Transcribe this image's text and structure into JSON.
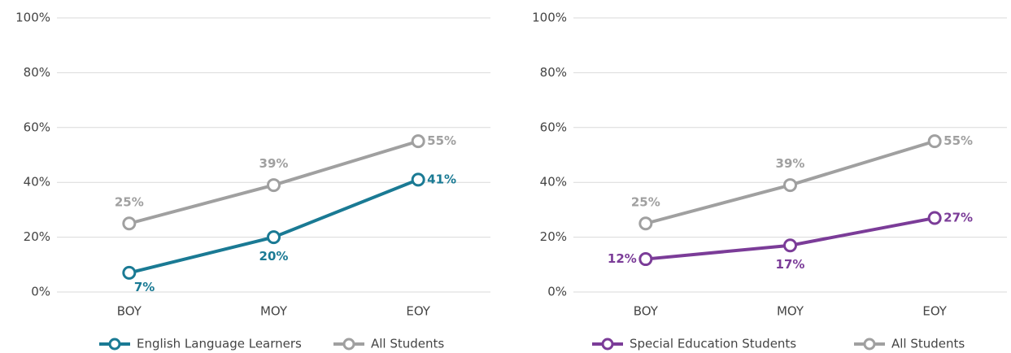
{
  "chart_data": [
    {
      "type": "line",
      "categories": [
        "BOY",
        "MOY",
        "EOY"
      ],
      "series": [
        {
          "name": "English Language Learners",
          "color": "#1a7a94",
          "values": [
            7,
            20,
            41
          ],
          "value_labels": [
            "7%",
            "20%",
            "41%"
          ]
        },
        {
          "name": "All Students",
          "color": "#a0a0a0",
          "values": [
            25,
            39,
            55
          ],
          "value_labels": [
            "25%",
            "39%",
            "55%"
          ]
        }
      ],
      "ylim": [
        0,
        100
      ],
      "yticks": [
        {
          "value": 0,
          "label": "0%"
        },
        {
          "value": 20,
          "label": "20%"
        },
        {
          "value": 40,
          "label": "40%"
        },
        {
          "value": 60,
          "label": "60%"
        },
        {
          "value": 80,
          "label": "80%"
        },
        {
          "value": 100,
          "label": "100%"
        }
      ],
      "grid": true
    },
    {
      "type": "line",
      "categories": [
        "BOY",
        "MOY",
        "EOY"
      ],
      "series": [
        {
          "name": "Special Education Students",
          "color": "#7b3c98",
          "values": [
            12,
            17,
            27
          ],
          "value_labels": [
            "12%",
            "17%",
            "27%"
          ]
        },
        {
          "name": "All Students",
          "color": "#a0a0a0",
          "values": [
            25,
            39,
            55
          ],
          "value_labels": [
            "25%",
            "39%",
            "55%"
          ]
        }
      ],
      "ylim": [
        0,
        100
      ],
      "yticks": [
        {
          "value": 0,
          "label": "0%"
        },
        {
          "value": 20,
          "label": "20%"
        },
        {
          "value": 40,
          "label": "40%"
        },
        {
          "value": 60,
          "label": "60%"
        },
        {
          "value": 80,
          "label": "80%"
        },
        {
          "value": 100,
          "label": "100%"
        }
      ],
      "grid": true
    }
  ]
}
